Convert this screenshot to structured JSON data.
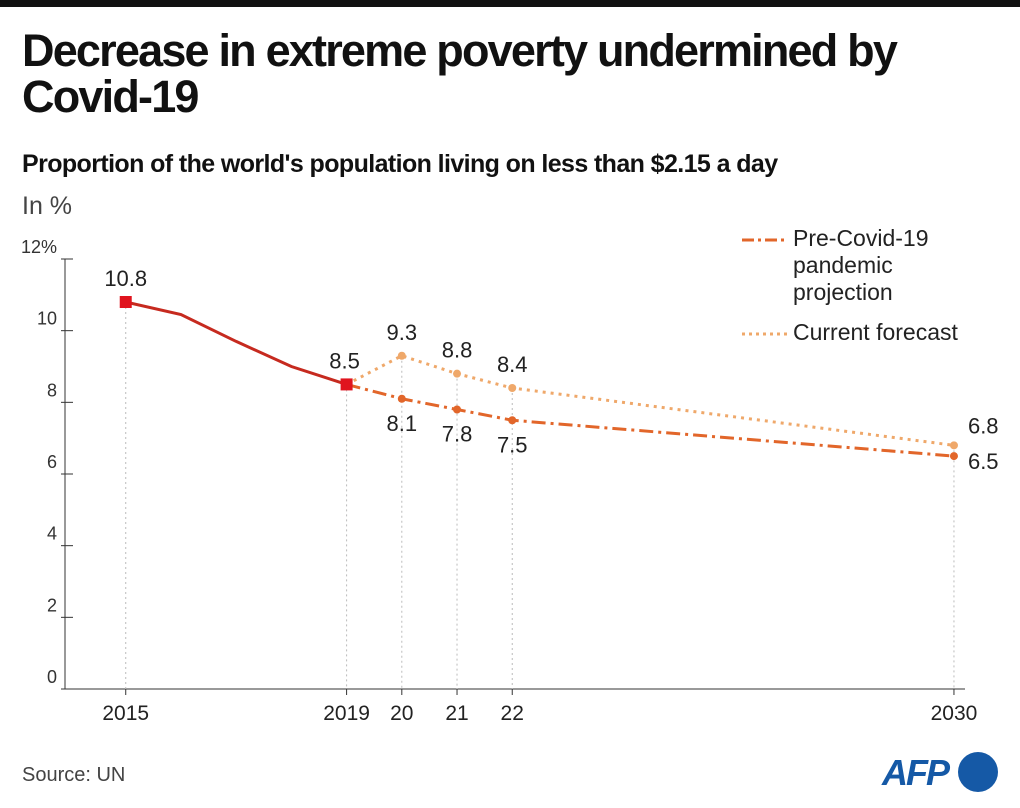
{
  "chart_data": {
    "type": "line",
    "title": "Decrease in extreme poverty undermined by Covid-19",
    "subtitle": "Proportion of the world's population living on less than $2.15 a day",
    "unit_label": "In %",
    "source": "Source: UN",
    "logo": "AFP",
    "xlim": [
      2013.9,
      2030.2
    ],
    "xticks": [
      2015,
      2019,
      {
        "value": 2020,
        "label": "20"
      },
      {
        "value": 2021,
        "label": "21"
      },
      {
        "value": 2022,
        "label": "22"
      },
      2030
    ],
    "ylim": [
      0,
      12
    ],
    "yticks": [
      0,
      2,
      4,
      6,
      8,
      10,
      {
        "value": 12,
        "label": "12%"
      }
    ],
    "legend": "top-right",
    "series": [
      {
        "color": "#c62a1f",
        "x": [
          2015,
          2016,
          2017,
          2018,
          2019
        ],
        "values": [
          10.8,
          10.45,
          9.7,
          9.0,
          8.5
        ]
      },
      {
        "name": "Pre-Covid-19 pandemic projection",
        "color": "#e2662a",
        "x": [
          2019,
          2020,
          2021,
          2022,
          2030
        ],
        "values": [
          8.5,
          8.1,
          7.8,
          7.5,
          6.5
        ]
      },
      {
        "name": "Current forecast",
        "color": "#efa86a",
        "x": [
          2019,
          2020,
          2021,
          2022,
          2030
        ],
        "values": [
          8.5,
          9.3,
          8.8,
          8.4,
          6.8
        ]
      }
    ]
  }
}
